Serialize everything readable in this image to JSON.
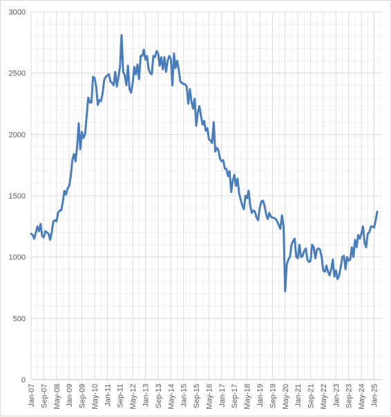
{
  "chart_data": {
    "type": "line",
    "title": "",
    "xlabel": "",
    "ylabel": "",
    "ylim": [
      0,
      3000
    ],
    "yticks": [
      0,
      500,
      1000,
      1500,
      2000,
      2500,
      3000
    ],
    "ytick_labels": [
      "0",
      "500",
      "1000",
      "1500",
      "2000",
      "2500",
      "3000"
    ],
    "x_start": "2007-01",
    "x_end": "2025-06",
    "x_tick_labels": [
      "Jan-07",
      "Sep-07",
      "May-08",
      "Jan-09",
      "Sep-09",
      "May-10",
      "Jan-11",
      "Sep-11",
      "May-12",
      "Jan-13",
      "Sep-13",
      "May-14",
      "Jan-15",
      "Sep-15",
      "May-16",
      "Jan-17",
      "Sep-17",
      "May-18",
      "Jan-19",
      "Sep-19",
      "May-20",
      "Jan-21",
      "Sep-21",
      "May-22",
      "Jan-23",
      "Sep-23",
      "May-24",
      "Jan-25"
    ],
    "grid": true,
    "legend": "none",
    "line_color": "#4a7ebb",
    "series": [
      {
        "points": [
          [
            "2007-01",
            1190
          ],
          [
            "2007-02",
            1180
          ],
          [
            "2007-03",
            1150
          ],
          [
            "2007-04",
            1200
          ],
          [
            "2007-05",
            1250
          ],
          [
            "2007-06",
            1210
          ],
          [
            "2007-07",
            1270
          ],
          [
            "2007-08",
            1170
          ],
          [
            "2007-09",
            1160
          ],
          [
            "2007-10",
            1210
          ],
          [
            "2007-11",
            1200
          ],
          [
            "2007-12",
            1190
          ],
          [
            "2008-01",
            1140
          ],
          [
            "2008-02",
            1200
          ],
          [
            "2008-03",
            1290
          ],
          [
            "2008-04",
            1300
          ],
          [
            "2008-05",
            1290
          ],
          [
            "2008-06",
            1360
          ],
          [
            "2008-07",
            1380
          ],
          [
            "2008-08",
            1380
          ],
          [
            "2008-09",
            1450
          ],
          [
            "2008-10",
            1540
          ],
          [
            "2008-11",
            1510
          ],
          [
            "2008-12",
            1560
          ],
          [
            "2009-01",
            1580
          ],
          [
            "2009-02",
            1660
          ],
          [
            "2009-03",
            1790
          ],
          [
            "2009-04",
            1840
          ],
          [
            "2009-05",
            1780
          ],
          [
            "2009-06",
            1900
          ],
          [
            "2009-07",
            2090
          ],
          [
            "2009-08",
            1880
          ],
          [
            "2009-09",
            2020
          ],
          [
            "2009-10",
            1970
          ],
          [
            "2009-11",
            2000
          ],
          [
            "2009-12",
            2150
          ],
          [
            "2010-01",
            2300
          ],
          [
            "2010-02",
            2260
          ],
          [
            "2010-03",
            2260
          ],
          [
            "2010-04",
            2470
          ],
          [
            "2010-05",
            2460
          ],
          [
            "2010-06",
            2390
          ],
          [
            "2010-07",
            2240
          ],
          [
            "2010-08",
            2280
          ],
          [
            "2010-09",
            2270
          ],
          [
            "2010-10",
            2330
          ],
          [
            "2010-11",
            2440
          ],
          [
            "2010-12",
            2470
          ],
          [
            "2011-01",
            2480
          ],
          [
            "2011-02",
            2490
          ],
          [
            "2011-03",
            2430
          ],
          [
            "2011-04",
            2420
          ],
          [
            "2011-05",
            2400
          ],
          [
            "2011-06",
            2510
          ],
          [
            "2011-07",
            2390
          ],
          [
            "2011-08",
            2470
          ],
          [
            "2011-09",
            2550
          ],
          [
            "2011-10",
            2810
          ],
          [
            "2011-11",
            2510
          ],
          [
            "2011-12",
            2480
          ],
          [
            "2012-01",
            2400
          ],
          [
            "2012-02",
            2560
          ],
          [
            "2012-03",
            2370
          ],
          [
            "2012-04",
            2340
          ],
          [
            "2012-05",
            2420
          ],
          [
            "2012-06",
            2550
          ],
          [
            "2012-07",
            2490
          ],
          [
            "2012-08",
            2570
          ],
          [
            "2012-09",
            2450
          ],
          [
            "2012-10",
            2640
          ],
          [
            "2012-11",
            2640
          ],
          [
            "2012-12",
            2690
          ],
          [
            "2013-01",
            2610
          ],
          [
            "2013-02",
            2640
          ],
          [
            "2013-03",
            2530
          ],
          [
            "2013-04",
            2500
          ],
          [
            "2013-05",
            2490
          ],
          [
            "2013-06",
            2640
          ],
          [
            "2013-07",
            2630
          ],
          [
            "2013-08",
            2680
          ],
          [
            "2013-09",
            2660
          ],
          [
            "2013-10",
            2560
          ],
          [
            "2013-11",
            2630
          ],
          [
            "2013-12",
            2530
          ],
          [
            "2014-01",
            2630
          ],
          [
            "2014-02",
            2510
          ],
          [
            "2014-03",
            2600
          ],
          [
            "2014-04",
            2640
          ],
          [
            "2014-05",
            2620
          ],
          [
            "2014-06",
            2400
          ],
          [
            "2014-07",
            2660
          ],
          [
            "2014-08",
            2540
          ],
          [
            "2014-09",
            2600
          ],
          [
            "2014-10",
            2530
          ],
          [
            "2014-11",
            2430
          ],
          [
            "2014-12",
            2420
          ],
          [
            "2015-01",
            2410
          ],
          [
            "2015-02",
            2410
          ],
          [
            "2015-03",
            2390
          ],
          [
            "2015-04",
            2250
          ],
          [
            "2015-05",
            2370
          ],
          [
            "2015-06",
            2270
          ],
          [
            "2015-07",
            2210
          ],
          [
            "2015-08",
            2290
          ],
          [
            "2015-09",
            2070
          ],
          [
            "2015-10",
            2180
          ],
          [
            "2015-11",
            2230
          ],
          [
            "2015-12",
            2150
          ],
          [
            "2016-01",
            2080
          ],
          [
            "2016-02",
            2110
          ],
          [
            "2016-03",
            2030
          ],
          [
            "2016-04",
            2050
          ],
          [
            "2016-05",
            1960
          ],
          [
            "2016-06",
            1950
          ],
          [
            "2016-07",
            1930
          ],
          [
            "2016-08",
            2100
          ],
          [
            "2016-09",
            1860
          ],
          [
            "2016-10",
            1890
          ],
          [
            "2016-11",
            1870
          ],
          [
            "2016-12",
            1800
          ],
          [
            "2017-01",
            1780
          ],
          [
            "2017-02",
            1790
          ],
          [
            "2017-03",
            1720
          ],
          [
            "2017-04",
            1720
          ],
          [
            "2017-05",
            1660
          ],
          [
            "2017-06",
            1700
          ],
          [
            "2017-07",
            1530
          ],
          [
            "2017-08",
            1620
          ],
          [
            "2017-09",
            1670
          ],
          [
            "2017-10",
            1580
          ],
          [
            "2017-11",
            1640
          ],
          [
            "2017-12",
            1520
          ],
          [
            "2018-01",
            1470
          ],
          [
            "2018-02",
            1420
          ],
          [
            "2018-03",
            1390
          ],
          [
            "2018-04",
            1500
          ],
          [
            "2018-05",
            1480
          ],
          [
            "2018-06",
            1540
          ],
          [
            "2018-07",
            1420
          ],
          [
            "2018-08",
            1360
          ],
          [
            "2018-09",
            1380
          ],
          [
            "2018-10",
            1370
          ],
          [
            "2018-11",
            1320
          ],
          [
            "2018-12",
            1300
          ],
          [
            "2019-01",
            1400
          ],
          [
            "2019-02",
            1450
          ],
          [
            "2019-03",
            1460
          ],
          [
            "2019-04",
            1420
          ],
          [
            "2019-05",
            1350
          ],
          [
            "2019-06",
            1310
          ],
          [
            "2019-07",
            1360
          ],
          [
            "2019-08",
            1330
          ],
          [
            "2019-09",
            1320
          ],
          [
            "2019-10",
            1320
          ],
          [
            "2019-11",
            1310
          ],
          [
            "2019-12",
            1290
          ],
          [
            "2020-01",
            1260
          ],
          [
            "2020-02",
            1230
          ],
          [
            "2020-03",
            1340
          ],
          [
            "2020-04",
            1250
          ],
          [
            "2020-05",
            720
          ],
          [
            "2020-06",
            940
          ],
          [
            "2020-07",
            980
          ],
          [
            "2020-08",
            1000
          ],
          [
            "2020-09",
            1100
          ],
          [
            "2020-10",
            1130
          ],
          [
            "2020-11",
            1150
          ],
          [
            "2020-12",
            1000
          ],
          [
            "2021-01",
            990
          ],
          [
            "2021-02",
            1100
          ],
          [
            "2021-03",
            1000
          ],
          [
            "2021-04",
            1010
          ],
          [
            "2021-05",
            1050
          ],
          [
            "2021-06",
            1070
          ],
          [
            "2021-07",
            980
          ],
          [
            "2021-08",
            960
          ],
          [
            "2021-09",
            970
          ],
          [
            "2021-10",
            1100
          ],
          [
            "2021-11",
            1080
          ],
          [
            "2021-12",
            990
          ],
          [
            "2022-01",
            1060
          ],
          [
            "2022-02",
            1070
          ],
          [
            "2022-03",
            1060
          ],
          [
            "2022-04",
            1000
          ],
          [
            "2022-05",
            890
          ],
          [
            "2022-06",
            880
          ],
          [
            "2022-07",
            930
          ],
          [
            "2022-08",
            880
          ],
          [
            "2022-09",
            850
          ],
          [
            "2022-10",
            900
          ],
          [
            "2022-11",
            980
          ],
          [
            "2022-12",
            840
          ],
          [
            "2023-01",
            890
          ],
          [
            "2023-02",
            820
          ],
          [
            "2023-03",
            850
          ],
          [
            "2023-04",
            920
          ],
          [
            "2023-05",
            1000
          ],
          [
            "2023-06",
            1010
          ],
          [
            "2023-07",
            900
          ],
          [
            "2023-08",
            1000
          ],
          [
            "2023-09",
            970
          ],
          [
            "2023-10",
            980
          ],
          [
            "2023-11",
            1080
          ],
          [
            "2023-12",
            1000
          ],
          [
            "2024-01",
            1140
          ],
          [
            "2024-02",
            1080
          ],
          [
            "2024-03",
            1180
          ],
          [
            "2024-04",
            1150
          ],
          [
            "2024-05",
            1190
          ],
          [
            "2024-06",
            1250
          ],
          [
            "2024-07",
            1120
          ],
          [
            "2024-08",
            1080
          ],
          [
            "2024-09",
            1190
          ],
          [
            "2024-10",
            1200
          ],
          [
            "2024-11",
            1250
          ],
          [
            "2024-12",
            1250
          ],
          [
            "2025-01",
            1240
          ],
          [
            "2025-02",
            1300
          ],
          [
            "2025-03",
            1370
          ]
        ]
      }
    ]
  }
}
